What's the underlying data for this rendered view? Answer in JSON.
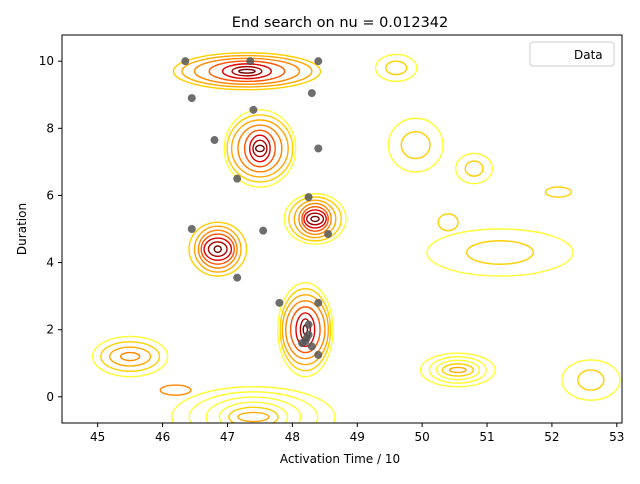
{
  "chart_data": {
    "type": "contour",
    "title": "End search on nu =  0.012342",
    "xlabel": "Activation Time / 10",
    "ylabel": "Duration",
    "xlim": [
      44.45,
      53.08
    ],
    "ylim": [
      -0.78,
      10.78
    ],
    "xticks": [
      "45",
      "46",
      "47",
      "48",
      "49",
      "50",
      "51",
      "52",
      "53"
    ],
    "yticks": [
      "0",
      "2",
      "4",
      "6",
      "8",
      "10"
    ],
    "legend": {
      "position": "top-right",
      "entries": [
        "Data"
      ]
    },
    "contour_palette": [
      "#ffff33",
      "#ffd000",
      "#ffaa00",
      "#ff8800",
      "#ff5500",
      "#e00000",
      "#aa0000",
      "#6e0000"
    ],
    "point_color": "#555555",
    "points": [
      {
        "x": 46.35,
        "y": 10.0
      },
      {
        "x": 47.35,
        "y": 10.0
      },
      {
        "x": 48.4,
        "y": 10.0
      },
      {
        "x": 48.3,
        "y": 9.05
      },
      {
        "x": 46.45,
        "y": 8.9
      },
      {
        "x": 47.4,
        "y": 8.55
      },
      {
        "x": 46.8,
        "y": 7.65
      },
      {
        "x": 48.4,
        "y": 7.4
      },
      {
        "x": 47.15,
        "y": 6.5
      },
      {
        "x": 48.25,
        "y": 5.95
      },
      {
        "x": 46.45,
        "y": 5.0
      },
      {
        "x": 47.55,
        "y": 4.95
      },
      {
        "x": 48.55,
        "y": 4.85
      },
      {
        "x": 47.15,
        "y": 3.55
      },
      {
        "x": 47.8,
        "y": 2.8
      },
      {
        "x": 48.4,
        "y": 2.8
      },
      {
        "x": 48.25,
        "y": 2.15
      },
      {
        "x": 48.25,
        "y": 1.85
      },
      {
        "x": 48.22,
        "y": 1.75
      },
      {
        "x": 48.2,
        "y": 1.65
      },
      {
        "x": 48.15,
        "y": 1.6
      },
      {
        "x": 48.3,
        "y": 1.5
      },
      {
        "x": 48.4,
        "y": 1.25
      }
    ],
    "contour_groups": [
      {
        "cx": 47.5,
        "cy": 7.4,
        "rx": 0.55,
        "ry": 1.15,
        "levels": 8,
        "inner": 0.08
      },
      {
        "cx": 48.35,
        "cy": 5.3,
        "rx": 0.45,
        "ry": 0.75,
        "levels": 8,
        "inner": 0.1
      },
      {
        "cx": 46.85,
        "cy": 4.4,
        "rx": 0.45,
        "ry": 0.8,
        "levels": 7,
        "inner": 0.12
      },
      {
        "cx": 48.2,
        "cy": 2.0,
        "rx": 0.45,
        "ry": 1.4,
        "levels": 8,
        "inner": 0.1
      },
      {
        "cx": 47.3,
        "cy": 9.7,
        "rx": 1.1,
        "ry": 0.55,
        "levels": 7,
        "inner": 0.1
      },
      {
        "cx": 47.4,
        "cy": -0.6,
        "rx": 1.2,
        "ry": 0.9,
        "levels": 6,
        "inner": 0.15,
        "palette_offset": -5
      },
      {
        "cx": 50.55,
        "cy": 0.8,
        "rx": 0.6,
        "ry": 0.5,
        "levels": 5,
        "inner": 0.15,
        "palette_offset": -5
      },
      {
        "cx": 45.5,
        "cy": 1.2,
        "rx": 0.6,
        "ry": 0.6,
        "levels": 4,
        "inner": 0.2,
        "palette_offset": -4
      },
      {
        "cx": 49.9,
        "cy": 7.5,
        "rx": 0.4,
        "ry": 0.8,
        "levels": 2,
        "inner": 0.5,
        "palette_offset": -6
      },
      {
        "cx": 51.2,
        "cy": 4.3,
        "rx": 1.1,
        "ry": 0.7,
        "levels": 2,
        "inner": 0.5,
        "palette_offset": -6
      },
      {
        "cx": 50.8,
        "cy": 6.8,
        "rx": 0.3,
        "ry": 0.45,
        "levels": 2,
        "inner": 0.5,
        "palette_offset": -6
      },
      {
        "cx": 52.1,
        "cy": 6.1,
        "rx": 0.2,
        "ry": 0.15,
        "levels": 1,
        "inner": 1,
        "palette_offset": -6
      },
      {
        "cx": 49.6,
        "cy": 9.8,
        "rx": 0.3,
        "ry": 0.4,
        "levels": 2,
        "inner": 0.5,
        "palette_offset": -6
      },
      {
        "cx": 52.6,
        "cy": 0.5,
        "rx": 0.45,
        "ry": 0.6,
        "levels": 2,
        "inner": 0.5,
        "palette_offset": -6
      },
      {
        "cx": 46.2,
        "cy": 0.2,
        "rx": 0.25,
        "ry": 0.15,
        "levels": 1,
        "inner": 1,
        "palette_offset": -4
      },
      {
        "cx": 50.4,
        "cy": 5.2,
        "rx": 0.15,
        "ry": 0.25,
        "levels": 1,
        "inner": 1,
        "palette_offset": -6
      }
    ]
  }
}
